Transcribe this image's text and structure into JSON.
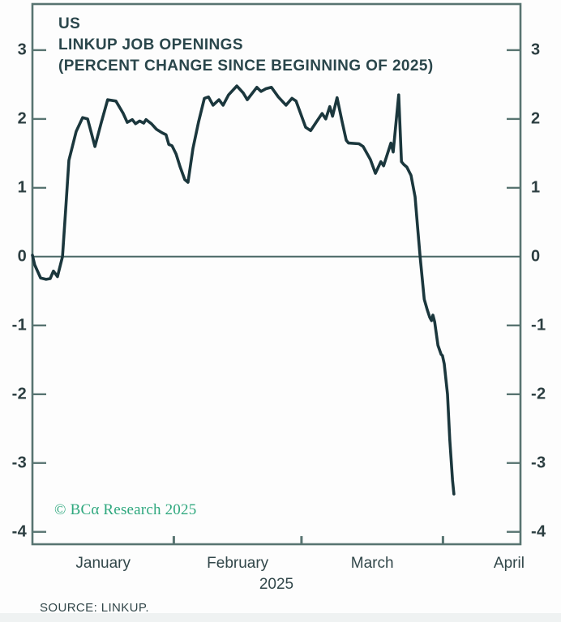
{
  "chart_data": {
    "type": "line",
    "title": "US LINKUP JOB OPENINGS (PERCENT CHANGE SINCE BEGINNING OF 2025)",
    "title_lines": [
      "US",
      "LINKUP JOB OPENINGS",
      "(PERCENT CHANGE SINCE BEGINNING OF 2025)"
    ],
    "x_axis": {
      "unit_note": "days since beginning of 2025",
      "xlim": [
        0,
        107
      ],
      "month_tick_days": [
        31,
        59,
        90
      ],
      "month_labels": [
        {
          "label": "January",
          "day": 15.5
        },
        {
          "label": "February",
          "day": 45
        },
        {
          "label": "March",
          "day": 74.5
        },
        {
          "label": "April",
          "day": 104.5
        }
      ],
      "year_label": "2025"
    },
    "y_axis": {
      "ylim": [
        -4.18,
        3.67
      ],
      "ticks": [
        3,
        2,
        1,
        0,
        -1,
        -2,
        -3,
        -4
      ],
      "zero_line": true,
      "grid": false
    },
    "series": [
      {
        "name": "LinkUp job openings, percent change since beginning of 2025",
        "points": [
          [
            0,
            0.02
          ],
          [
            0.5,
            -0.12
          ],
          [
            1.8,
            -0.31
          ],
          [
            3.0,
            -0.33
          ],
          [
            3.9,
            -0.32
          ],
          [
            4.6,
            -0.21
          ],
          [
            5.5,
            -0.29
          ],
          [
            6.6,
            0.0
          ],
          [
            7.3,
            0.7
          ],
          [
            8.0,
            1.4
          ],
          [
            9.6,
            1.82
          ],
          [
            11.0,
            2.02
          ],
          [
            12.1,
            2.0
          ],
          [
            13.7,
            1.6
          ],
          [
            15.1,
            1.95
          ],
          [
            16.5,
            2.28
          ],
          [
            18.3,
            2.26
          ],
          [
            19.9,
            2.08
          ],
          [
            20.8,
            1.95
          ],
          [
            21.9,
            1.99
          ],
          [
            22.6,
            1.93
          ],
          [
            23.5,
            1.97
          ],
          [
            24.4,
            1.94
          ],
          [
            24.9,
            1.99
          ],
          [
            26.1,
            1.93
          ],
          [
            27.2,
            1.85
          ],
          [
            28.4,
            1.8
          ],
          [
            29.3,
            1.77
          ],
          [
            29.9,
            1.63
          ],
          [
            30.6,
            1.61
          ],
          [
            31.5,
            1.49
          ],
          [
            32.4,
            1.3
          ],
          [
            33.4,
            1.12
          ],
          [
            34.1,
            1.08
          ],
          [
            35.2,
            1.57
          ],
          [
            36.4,
            1.95
          ],
          [
            37.7,
            2.3
          ],
          [
            38.6,
            2.32
          ],
          [
            39.6,
            2.2
          ],
          [
            40.9,
            2.28
          ],
          [
            41.8,
            2.2
          ],
          [
            43.0,
            2.35
          ],
          [
            44.8,
            2.48
          ],
          [
            46.2,
            2.38
          ],
          [
            47.1,
            2.28
          ],
          [
            49.2,
            2.46
          ],
          [
            50.1,
            2.4
          ],
          [
            51.2,
            2.44
          ],
          [
            52.4,
            2.46
          ],
          [
            53.9,
            2.32
          ],
          [
            55.6,
            2.2
          ],
          [
            56.9,
            2.3
          ],
          [
            57.8,
            2.26
          ],
          [
            59.9,
            1.88
          ],
          [
            61.0,
            1.83
          ],
          [
            62.2,
            1.95
          ],
          [
            63.5,
            2.08
          ],
          [
            64.3,
            2.0
          ],
          [
            65.2,
            2.18
          ],
          [
            65.8,
            2.04
          ],
          [
            66.8,
            2.31
          ],
          [
            67.9,
            1.96
          ],
          [
            68.8,
            1.69
          ],
          [
            69.3,
            1.65
          ],
          [
            71.6,
            1.64
          ],
          [
            72.5,
            1.6
          ],
          [
            74.1,
            1.41
          ],
          [
            75.2,
            1.21
          ],
          [
            76.4,
            1.38
          ],
          [
            77.0,
            1.32
          ],
          [
            78.6,
            1.65
          ],
          [
            79.1,
            1.52
          ],
          [
            80.3,
            2.35
          ],
          [
            80.9,
            1.38
          ],
          [
            81.4,
            1.34
          ],
          [
            82.1,
            1.3
          ],
          [
            83.0,
            1.18
          ],
          [
            83.9,
            0.87
          ],
          [
            84.4,
            0.47
          ],
          [
            85.0,
            0.0
          ],
          [
            85.9,
            -0.62
          ],
          [
            86.6,
            -0.78
          ],
          [
            87.1,
            -0.88
          ],
          [
            87.5,
            -0.93
          ],
          [
            87.8,
            -0.85
          ],
          [
            88.2,
            -0.95
          ],
          [
            88.9,
            -1.29
          ],
          [
            89.6,
            -1.42
          ],
          [
            89.9,
            -1.44
          ],
          [
            90.3,
            -1.56
          ],
          [
            91.0,
            -2.0
          ],
          [
            91.5,
            -2.66
          ],
          [
            92.1,
            -3.25
          ],
          [
            92.4,
            -3.45
          ]
        ]
      }
    ],
    "colors": {
      "line": "#1b373d",
      "axis": "#587471",
      "zero_line": "#4e6b69",
      "tick_text": "#2c3e41",
      "accent_green": "#2fa87e"
    },
    "legend": null
  },
  "branding": {
    "copyright": "© BCα Research 2025"
  },
  "footer": {
    "source": "SOURCE: LINKUP."
  }
}
